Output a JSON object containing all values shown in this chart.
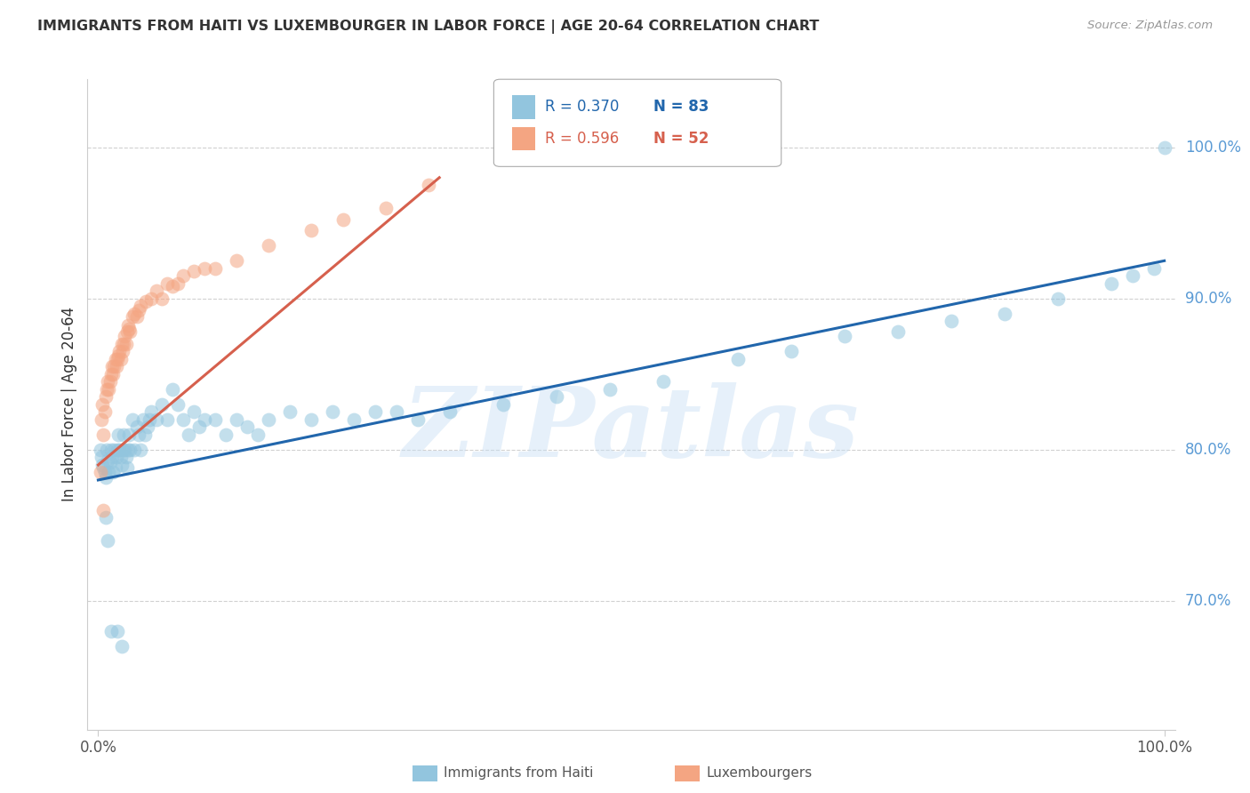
{
  "title": "IMMIGRANTS FROM HAITI VS LUXEMBOURGER IN LABOR FORCE | AGE 20-64 CORRELATION CHART",
  "source": "Source: ZipAtlas.com",
  "ylabel": "In Labor Force | Age 20-64",
  "ytick_labels": [
    "70.0%",
    "80.0%",
    "90.0%",
    "100.0%"
  ],
  "ytick_values": [
    0.7,
    0.8,
    0.9,
    1.0
  ],
  "xlim": [
    -0.01,
    1.01
  ],
  "ylim": [
    0.615,
    1.045
  ],
  "watermark_text": "ZIPatlas",
  "legend_blue_R": "R = 0.370",
  "legend_blue_N": "N = 83",
  "legend_pink_R": "R = 0.596",
  "legend_pink_N": "N = 52",
  "blue_color": "#92c5de",
  "pink_color": "#f4a582",
  "blue_line_color": "#2166ac",
  "pink_line_color": "#d6604d",
  "blue_scatter_x": [
    0.002,
    0.003,
    0.004,
    0.005,
    0.006,
    0.007,
    0.008,
    0.009,
    0.01,
    0.011,
    0.012,
    0.013,
    0.014,
    0.015,
    0.016,
    0.017,
    0.018,
    0.019,
    0.02,
    0.021,
    0.022,
    0.023,
    0.024,
    0.025,
    0.026,
    0.027,
    0.028,
    0.029,
    0.03,
    0.032,
    0.034,
    0.036,
    0.038,
    0.04,
    0.042,
    0.044,
    0.046,
    0.048,
    0.05,
    0.055,
    0.06,
    0.065,
    0.07,
    0.075,
    0.08,
    0.085,
    0.09,
    0.095,
    0.1,
    0.11,
    0.12,
    0.13,
    0.14,
    0.15,
    0.16,
    0.18,
    0.2,
    0.22,
    0.24,
    0.26,
    0.28,
    0.3,
    0.33,
    0.38,
    0.43,
    0.48,
    0.53,
    0.6,
    0.65,
    0.7,
    0.75,
    0.8,
    0.85,
    0.9,
    0.95,
    0.97,
    0.99,
    1.0,
    0.007,
    0.009,
    0.012,
    0.018,
    0.022
  ],
  "blue_scatter_y": [
    0.8,
    0.795,
    0.79,
    0.788,
    0.785,
    0.782,
    0.8,
    0.793,
    0.785,
    0.792,
    0.8,
    0.795,
    0.785,
    0.8,
    0.788,
    0.795,
    0.8,
    0.81,
    0.8,
    0.795,
    0.79,
    0.8,
    0.81,
    0.8,
    0.795,
    0.788,
    0.8,
    0.81,
    0.8,
    0.82,
    0.8,
    0.815,
    0.81,
    0.8,
    0.82,
    0.81,
    0.815,
    0.82,
    0.825,
    0.82,
    0.83,
    0.82,
    0.84,
    0.83,
    0.82,
    0.81,
    0.825,
    0.815,
    0.82,
    0.82,
    0.81,
    0.82,
    0.815,
    0.81,
    0.82,
    0.825,
    0.82,
    0.825,
    0.82,
    0.825,
    0.825,
    0.82,
    0.825,
    0.83,
    0.835,
    0.84,
    0.845,
    0.86,
    0.865,
    0.875,
    0.878,
    0.885,
    0.89,
    0.9,
    0.91,
    0.915,
    0.92,
    1.0,
    0.755,
    0.74,
    0.68,
    0.68,
    0.67
  ],
  "pink_scatter_x": [
    0.002,
    0.003,
    0.004,
    0.005,
    0.006,
    0.007,
    0.008,
    0.009,
    0.01,
    0.011,
    0.012,
    0.013,
    0.014,
    0.015,
    0.016,
    0.017,
    0.018,
    0.019,
    0.02,
    0.021,
    0.022,
    0.023,
    0.024,
    0.025,
    0.026,
    0.027,
    0.028,
    0.029,
    0.03,
    0.032,
    0.034,
    0.036,
    0.038,
    0.04,
    0.045,
    0.05,
    0.055,
    0.06,
    0.065,
    0.07,
    0.075,
    0.08,
    0.09,
    0.1,
    0.11,
    0.13,
    0.16,
    0.2,
    0.23,
    0.27,
    0.31,
    0.005
  ],
  "pink_scatter_y": [
    0.785,
    0.82,
    0.83,
    0.81,
    0.825,
    0.835,
    0.84,
    0.845,
    0.84,
    0.845,
    0.85,
    0.855,
    0.85,
    0.855,
    0.86,
    0.855,
    0.86,
    0.862,
    0.865,
    0.86,
    0.87,
    0.865,
    0.87,
    0.875,
    0.87,
    0.878,
    0.882,
    0.88,
    0.878,
    0.888,
    0.89,
    0.888,
    0.892,
    0.895,
    0.898,
    0.9,
    0.905,
    0.9,
    0.91,
    0.908,
    0.91,
    0.915,
    0.918,
    0.92,
    0.92,
    0.925,
    0.935,
    0.945,
    0.952,
    0.96,
    0.975,
    0.76
  ],
  "blue_trend_x": [
    0.0,
    1.0
  ],
  "blue_trend_y": [
    0.78,
    0.925
  ],
  "pink_trend_x": [
    0.0,
    0.32
  ],
  "pink_trend_y": [
    0.79,
    0.98
  ],
  "background_color": "#ffffff",
  "grid_color": "#cccccc",
  "title_color": "#333333",
  "ytick_color": "#5b9bd5",
  "xtick_color": "#555555"
}
